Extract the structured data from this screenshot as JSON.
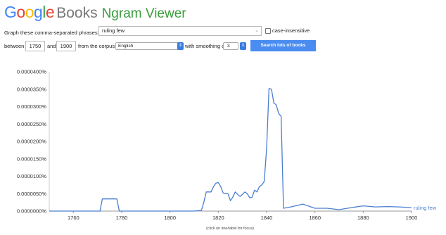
{
  "header": {
    "google_letters": [
      {
        "ch": "G",
        "color": "#4285f4"
      },
      {
        "ch": "o",
        "color": "#ea4335"
      },
      {
        "ch": "o",
        "color": "#fbbc05"
      },
      {
        "ch": "g",
        "color": "#4285f4"
      },
      {
        "ch": "l",
        "color": "#34a853"
      },
      {
        "ch": "e",
        "color": "#ea4335"
      }
    ],
    "books": "Books",
    "ngram": "Ngram Viewer"
  },
  "form": {
    "phrases_label": "Graph these comma-separated phrases:",
    "phrases_value": "ruling few",
    "case_insensitive_label": "case-insensitive",
    "case_insensitive_checked": false,
    "between_label": "between",
    "start_year": "1750",
    "and_label": "and",
    "end_year": "1900",
    "corpus_label": "from the corpus",
    "corpus_value": "English",
    "smoothing_label": "with smoothing of",
    "smoothing_value": "3",
    "search_button": "Search lots of books"
  },
  "chart_data": {
    "type": "line",
    "x_range": [
      1750,
      1900
    ],
    "y_range": [
      0,
      4e-07
    ],
    "x_ticks": [
      "1760",
      "1780",
      "1800",
      "1820",
      "1840",
      "1860",
      "1880",
      "1900"
    ],
    "y_ticks": [
      "0.0000000%",
      "0.0000050%",
      "0.0000100%",
      "0.0000150%",
      "0.0000200%",
      "0.0000250%",
      "0.0000300%",
      "0.0000350%",
      "0.0000400%"
    ],
    "footnote": "(click on line/label for focus)",
    "grid": false,
    "line_color": "#4a7fd0",
    "series": [
      {
        "name": "ruling few",
        "points": [
          [
            1750,
            0.0
          ],
          [
            1771,
            0.0
          ],
          [
            1772,
            3.5e-08
          ],
          [
            1778,
            3.5e-08
          ],
          [
            1779,
            0.0
          ],
          [
            1810,
            0.0
          ],
          [
            1813,
            2e-09
          ],
          [
            1814,
            2.5e-08
          ],
          [
            1815,
            5.5e-08
          ],
          [
            1817,
            5.5e-08
          ],
          [
            1818,
            7e-08
          ],
          [
            1819,
            8e-08
          ],
          [
            1820,
            8.2e-08
          ],
          [
            1821,
            7e-08
          ],
          [
            1822,
            5.2e-08
          ],
          [
            1823,
            5e-08
          ],
          [
            1824,
            5e-08
          ],
          [
            1825,
            3e-08
          ],
          [
            1826,
            4e-08
          ],
          [
            1827,
            5.5e-08
          ],
          [
            1828,
            4.8e-08
          ],
          [
            1829,
            4.2e-08
          ],
          [
            1830,
            4.8e-08
          ],
          [
            1831,
            5.5e-08
          ],
          [
            1832,
            5e-08
          ],
          [
            1833,
            3.8e-08
          ],
          [
            1834,
            4e-08
          ],
          [
            1835,
            6e-08
          ],
          [
            1836,
            5.5e-08
          ],
          [
            1837,
            7e-08
          ],
          [
            1838,
            7.5e-08
          ],
          [
            1839,
            8.5e-08
          ],
          [
            1840,
            1.8e-07
          ],
          [
            1841,
            3.52e-07
          ],
          [
            1842,
            3.5e-07
          ],
          [
            1843,
            3.1e-07
          ],
          [
            1844,
            3.05e-07
          ],
          [
            1845,
            2.8e-07
          ],
          [
            1846,
            2.72e-07
          ],
          [
            1847,
            8e-09
          ],
          [
            1850,
            1.2e-08
          ],
          [
            1855,
            2e-08
          ],
          [
            1860,
            8e-09
          ],
          [
            1865,
            8e-09
          ],
          [
            1870,
            4e-09
          ],
          [
            1875,
            1e-08
          ],
          [
            1880,
            1.5e-08
          ],
          [
            1885,
            1.2e-08
          ],
          [
            1890,
            1.3e-08
          ],
          [
            1895,
            1.2e-08
          ],
          [
            1900,
            1e-08
          ]
        ]
      }
    ]
  }
}
